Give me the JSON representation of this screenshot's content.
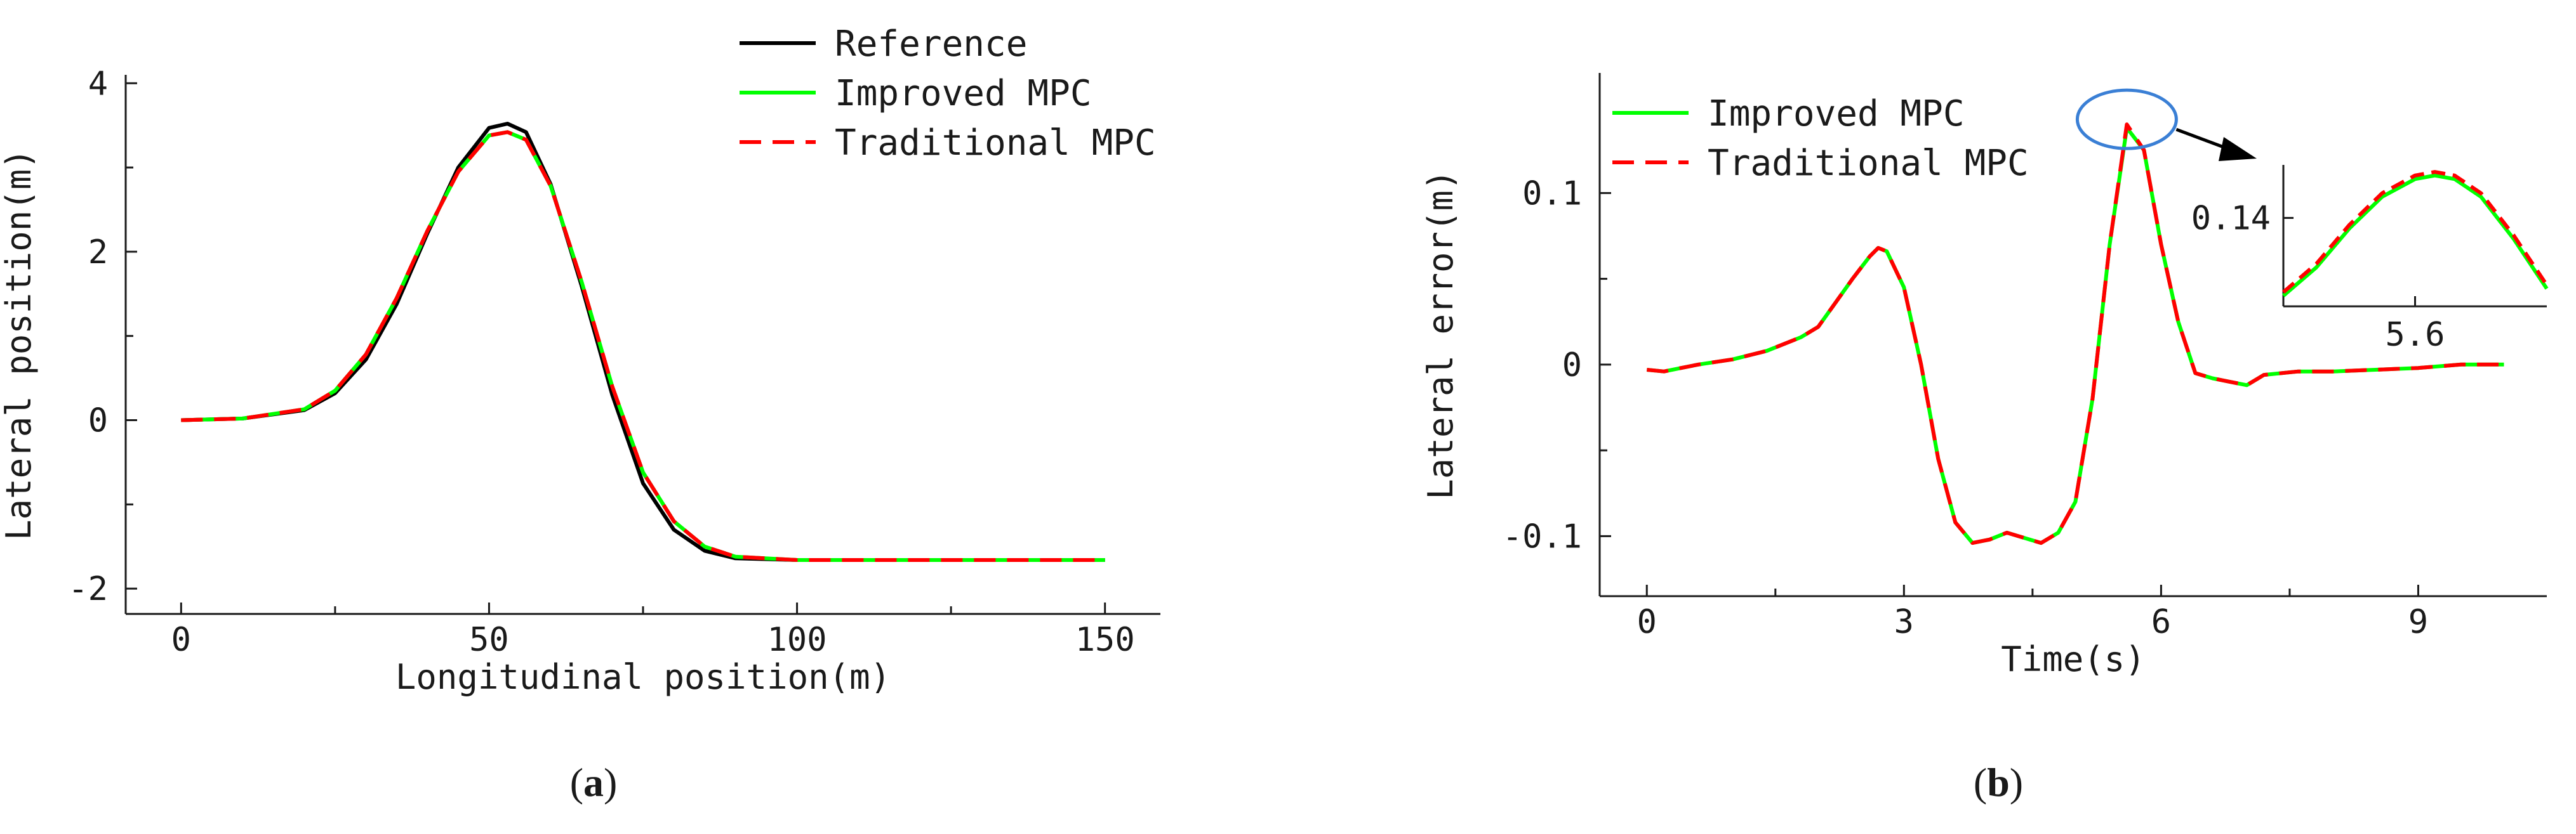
{
  "panels": [
    {
      "id": "a",
      "caption_open": "(",
      "caption_letter": "a",
      "caption_close": ")",
      "chart_data": {
        "type": "line",
        "xlabel": "Longitudinal position(m)",
        "ylabel": "Lateral position(m)",
        "xlim": [
          -9,
          159
        ],
        "ylim": [
          -2.3,
          4.1
        ],
        "x_ticks": [
          0,
          50,
          100,
          150
        ],
        "x_minor_ticks": [
          25,
          75,
          125
        ],
        "y_ticks": [
          -2,
          0,
          2,
          4
        ],
        "y_minor_ticks": [
          -1,
          1,
          3
        ],
        "grid": false,
        "legend_position": "top-right",
        "series": [
          {
            "name": "Reference",
            "color": "#000000",
            "dash": "solid",
            "x": [
              0,
              10,
              20,
              25,
              30,
              35,
              40,
              45,
              50,
              53,
              56,
              60,
              65,
              70,
              75,
              80,
              85,
              90,
              100,
              120,
              150
            ],
            "y": [
              0.0,
              0.02,
              0.12,
              0.32,
              0.72,
              1.38,
              2.22,
              3.0,
              3.47,
              3.52,
              3.42,
              2.8,
              1.6,
              0.3,
              -0.75,
              -1.3,
              -1.55,
              -1.64,
              -1.66,
              -1.66,
              -1.66
            ]
          },
          {
            "name": "Improved MPC",
            "color": "#00ff00",
            "dash": "solid",
            "x": [
              0,
              10,
              20,
              25,
              30,
              35,
              40,
              45,
              50,
              53,
              56,
              60,
              65,
              70,
              75,
              80,
              85,
              90,
              100,
              120,
              150
            ],
            "y": [
              0.0,
              0.02,
              0.13,
              0.35,
              0.78,
              1.45,
              2.25,
              2.95,
              3.38,
              3.42,
              3.33,
              2.78,
              1.65,
              0.4,
              -0.62,
              -1.2,
              -1.5,
              -1.62,
              -1.66,
              -1.66,
              -1.66
            ]
          },
          {
            "name": "Traditional MPC",
            "color": "#ff0000",
            "dash": "dashed",
            "x": [
              0,
              10,
              20,
              25,
              30,
              35,
              40,
              45,
              50,
              53,
              56,
              60,
              65,
              70,
              75,
              80,
              85,
              90,
              100,
              120,
              150
            ],
            "y": [
              0.0,
              0.02,
              0.13,
              0.35,
              0.78,
              1.45,
              2.25,
              2.95,
              3.38,
              3.42,
              3.33,
              2.78,
              1.65,
              0.4,
              -0.62,
              -1.2,
              -1.5,
              -1.62,
              -1.66,
              -1.66,
              -1.66
            ]
          }
        ]
      }
    },
    {
      "id": "b",
      "caption_open": "(",
      "caption_letter": "b",
      "caption_close": ")",
      "chart_data": {
        "type": "line",
        "xlabel": "Time(s)",
        "ylabel": "Lateral error(m)",
        "xlim": [
          -0.55,
          10.5
        ],
        "ylim": [
          -0.135,
          0.17
        ],
        "x_ticks": [
          0,
          3,
          6,
          9
        ],
        "x_minor_ticks": [
          1.5,
          4.5,
          7.5
        ],
        "y_ticks": [
          -0.1,
          0,
          0.1
        ],
        "y_tick_labels": [
          "-0.1",
          "0",
          "0.1"
        ],
        "y_minor_ticks": [
          -0.05,
          0.05
        ],
        "grid": false,
        "legend_position": "top-left",
        "series": [
          {
            "name": "Improved MPC",
            "color": "#00ff00",
            "dash": "solid",
            "x": [
              0,
              0.2,
              0.4,
              0.6,
              1.0,
              1.4,
              1.8,
              2.0,
              2.2,
              2.4,
              2.6,
              2.7,
              2.8,
              3.0,
              3.2,
              3.4,
              3.6,
              3.8,
              4.0,
              4.2,
              4.4,
              4.6,
              4.8,
              5.0,
              5.2,
              5.4,
              5.6,
              5.8,
              6.0,
              6.2,
              6.4,
              6.6,
              6.8,
              7.0,
              7.2,
              7.6,
              8.0,
              8.5,
              9.0,
              9.5,
              10.0
            ],
            "y": [
              -0.003,
              -0.004,
              -0.002,
              0.0,
              0.003,
              0.008,
              0.016,
              0.022,
              0.036,
              0.05,
              0.063,
              0.068,
              0.066,
              0.045,
              0.0,
              -0.055,
              -0.092,
              -0.104,
              -0.102,
              -0.098,
              -0.101,
              -0.104,
              -0.098,
              -0.08,
              -0.02,
              0.07,
              0.138,
              0.125,
              0.07,
              0.025,
              -0.005,
              -0.008,
              -0.01,
              -0.012,
              -0.006,
              -0.004,
              -0.004,
              -0.003,
              -0.002,
              0.0,
              0.0
            ]
          },
          {
            "name": "Traditional MPC",
            "color": "#ff0000",
            "dash": "dashed",
            "x": [
              0,
              0.2,
              0.4,
              0.6,
              1.0,
              1.4,
              1.8,
              2.0,
              2.2,
              2.4,
              2.6,
              2.7,
              2.8,
              3.0,
              3.2,
              3.4,
              3.6,
              3.8,
              4.0,
              4.2,
              4.4,
              4.6,
              4.8,
              5.0,
              5.2,
              5.4,
              5.6,
              5.8,
              6.0,
              6.2,
              6.4,
              6.6,
              6.8,
              7.0,
              7.2,
              7.6,
              8.0,
              8.5,
              9.0,
              9.5,
              10.0
            ],
            "y": [
              -0.003,
              -0.004,
              -0.002,
              0.0,
              0.003,
              0.008,
              0.016,
              0.022,
              0.036,
              0.05,
              0.063,
              0.068,
              0.066,
              0.045,
              0.0,
              -0.055,
              -0.092,
              -0.104,
              -0.102,
              -0.098,
              -0.101,
              -0.104,
              -0.098,
              -0.08,
              -0.02,
              0.07,
              0.14,
              0.125,
              0.07,
              0.025,
              -0.005,
              -0.008,
              -0.01,
              -0.012,
              -0.006,
              -0.004,
              -0.004,
              -0.003,
              -0.002,
              0.0,
              0.0
            ]
          }
        ],
        "inset": {
          "x_ticks": [
            5.6
          ],
          "x_tick_labels": [
            "5.6"
          ],
          "y_ticks": [
            0.14
          ],
          "y_tick_labels": [
            "0.14"
          ],
          "xlim": [
            5.4,
            5.8
          ],
          "ylim": [
            0.1375,
            0.1415
          ],
          "series": [
            {
              "name": "Improved MPC",
              "color": "#00ff00",
              "dash": "solid",
              "x": [
                5.4,
                5.45,
                5.5,
                5.55,
                5.6,
                5.63,
                5.66,
                5.7,
                5.75,
                5.8
              ],
              "y": [
                0.1378,
                0.1386,
                0.1397,
                0.1406,
                0.1411,
                0.1412,
                0.1411,
                0.1406,
                0.1394,
                0.138
              ]
            },
            {
              "name": "Traditional MPC",
              "color": "#ff0000",
              "dash": "dashed",
              "x": [
                5.4,
                5.45,
                5.5,
                5.55,
                5.6,
                5.63,
                5.66,
                5.7,
                5.75,
                5.8
              ],
              "y": [
                0.1379,
                0.1387,
                0.1398,
                0.1407,
                0.1412,
                0.1413,
                0.1412,
                0.1407,
                0.1395,
                0.1381
              ]
            }
          ],
          "highlight_color": "#3a7fd5"
        }
      }
    }
  ]
}
